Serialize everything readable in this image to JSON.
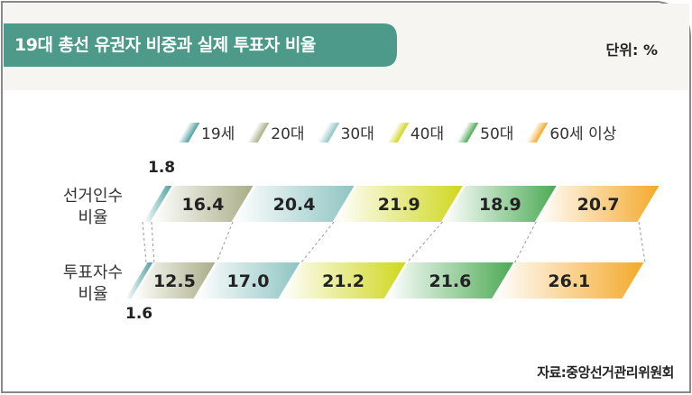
{
  "title": "19대 총선 유권자 비중과 실제 투표자 비율",
  "unit_label": "단위: %",
  "source_label": "자료:중앙선거관리위원회",
  "chart_data": {
    "type": "bar",
    "stacked": true,
    "orientation": "horizontal",
    "categories": [
      "선거인수 비율",
      "투표자수 비율"
    ],
    "series": [
      {
        "name": "19세",
        "values": [
          1.8,
          1.6
        ],
        "color": "#4e9fa0"
      },
      {
        "name": "20대",
        "values": [
          16.4,
          12.5
        ],
        "color": "#a9ad86"
      },
      {
        "name": "30대",
        "values": [
          20.4,
          17.0
        ],
        "color": "#8fc4c2"
      },
      {
        "name": "40대",
        "values": [
          21.9,
          21.2
        ],
        "color": "#cfd71c"
      },
      {
        "name": "50대",
        "values": [
          18.9,
          21.6
        ],
        "color": "#4caa55"
      },
      {
        "name": "60세 이상",
        "values": [
          20.7,
          26.1
        ],
        "color": "#f4a92a"
      }
    ],
    "xlim": [
      0,
      100
    ],
    "legend_position": "top"
  },
  "row_labels": [
    [
      "선거인수",
      "비율"
    ],
    [
      "투표자수",
      "비율"
    ]
  ]
}
